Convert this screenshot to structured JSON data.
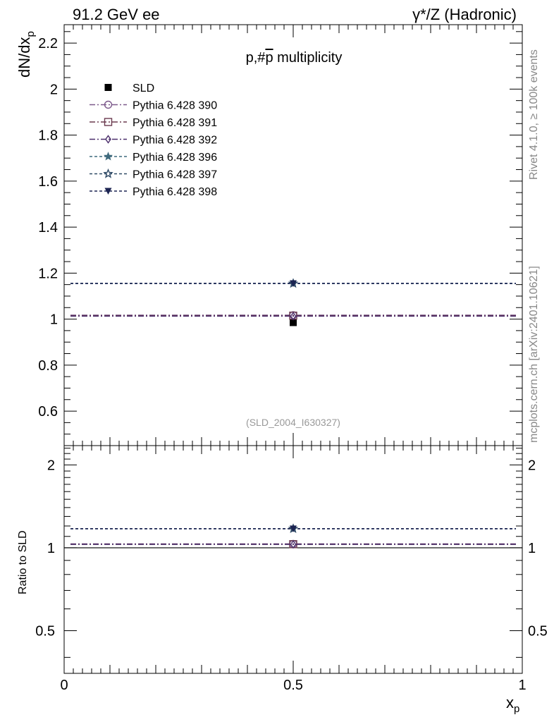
{
  "header": {
    "left": "91.2 GeV ee",
    "right": "γ*/Z (Hadronic)"
  },
  "side_text": {
    "rivet": "Rivet 4.1.0, ≥ 100k events",
    "mcplots": "mcplots.cern.ch [arXiv:2401.10621]"
  },
  "chart_data": [
    {
      "type": "scatter",
      "title": "p,#p̄ multiplicity",
      "title_parts": {
        "main": "p,#",
        "overlined": "p",
        "rest": " multiplicity"
      },
      "analysis_id": "(SLD_2004_I630327)",
      "xlabel": "x",
      "xlabel_sub": "p",
      "ylabel": "dN/dx",
      "ylabel_sub": "p",
      "xlim": [
        0,
        1
      ],
      "ylim": [
        0.45,
        2.28
      ],
      "y_ticks": [
        0.6,
        0.8,
        1,
        1.2,
        1.4,
        1.6,
        1.8,
        2,
        2.2
      ],
      "y_tick_labels": [
        "0.6",
        "0.8",
        "1",
        "1.2",
        "1.4",
        "1.6",
        "1.8",
        "2",
        "2.2"
      ],
      "legend_position": "top-left",
      "series": [
        {
          "name": "SLD",
          "marker": "square-filled",
          "color": "#000000",
          "line": "none",
          "x": [
            0.5
          ],
          "y": [
            0.985
          ]
        },
        {
          "name": "Pythia 6.428 390",
          "marker": "circle-open",
          "color": "#7d5a8c",
          "line": "dashdot",
          "x": [
            0.5
          ],
          "y": [
            1.017
          ]
        },
        {
          "name": "Pythia 6.428 391",
          "marker": "square-open",
          "color": "#6b3a4f",
          "line": "dashdot",
          "x": [
            0.5
          ],
          "y": [
            1.015
          ]
        },
        {
          "name": "Pythia 6.428 392",
          "marker": "diamond-open",
          "color": "#4b2e6b",
          "line": "dashdot",
          "x": [
            0.5
          ],
          "y": [
            1.013
          ]
        },
        {
          "name": "Pythia 6.428 396",
          "marker": "star-filled",
          "color": "#3f6a7d",
          "line": "dashed",
          "x": [
            0.5
          ],
          "y": [
            1.155
          ]
        },
        {
          "name": "Pythia 6.428 397",
          "marker": "star-open",
          "color": "#2f4a66",
          "line": "dashed",
          "x": [
            0.5
          ],
          "y": [
            1.155
          ]
        },
        {
          "name": "Pythia 6.428 398",
          "marker": "triangle-down-filled",
          "color": "#1c2452",
          "line": "dashed",
          "x": [
            0.5
          ],
          "y": [
            1.155
          ]
        }
      ]
    },
    {
      "type": "scatter",
      "title": "",
      "xlabel": "x",
      "xlabel_sub": "p",
      "ylabel": "Ratio to SLD",
      "xlim": [
        0,
        1
      ],
      "ylim": [
        0.35,
        2.35
      ],
      "x_ticks": [
        0,
        0.5,
        1
      ],
      "x_tick_labels": [
        "0",
        "0.5",
        "1"
      ],
      "y_ticks": [
        0.5,
        1,
        2
      ],
      "y_tick_labels": [
        "0.5",
        "1",
        "2"
      ],
      "reference_line": 1,
      "series": [
        {
          "name": "Pythia 6.428 390",
          "x": [
            0.5
          ],
          "y": [
            1.033
          ]
        },
        {
          "name": "Pythia 6.428 391",
          "x": [
            0.5
          ],
          "y": [
            1.031
          ]
        },
        {
          "name": "Pythia 6.428 392",
          "x": [
            0.5
          ],
          "y": [
            1.029
          ]
        },
        {
          "name": "Pythia 6.428 396",
          "x": [
            0.5
          ],
          "y": [
            1.173
          ]
        },
        {
          "name": "Pythia 6.428 397",
          "x": [
            0.5
          ],
          "y": [
            1.173
          ]
        },
        {
          "name": "Pythia 6.428 398",
          "x": [
            0.5
          ],
          "y": [
            1.173
          ]
        }
      ]
    }
  ]
}
